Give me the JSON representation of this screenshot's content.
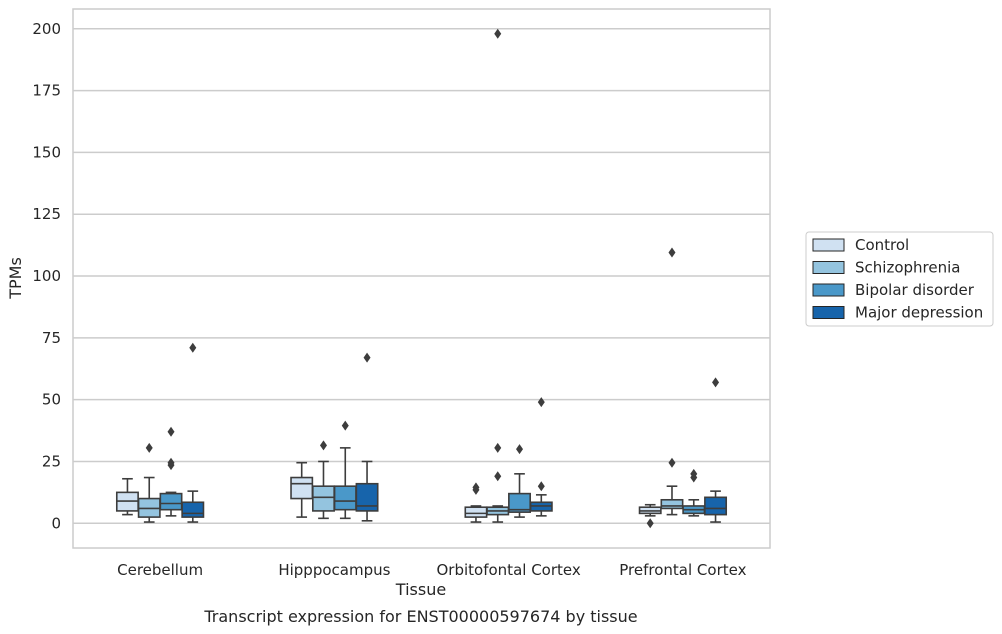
{
  "chart_data": {
    "type": "box",
    "caption": "Transcript expression for ENST00000597674 by tissue",
    "xlabel": "Tissue",
    "ylabel": "TPMs",
    "ylim": [
      -10,
      208
    ],
    "yticks": [
      0,
      25,
      50,
      75,
      100,
      125,
      150,
      175,
      200
    ],
    "grid": true,
    "legend_position": "right",
    "categories": [
      "Cerebellum",
      "Hipppocampus",
      "Orbitofontal Cortex",
      "Prefrontal Cortex"
    ],
    "series": [
      {
        "name": "Control",
        "color": "#d0e1f2",
        "boxes": [
          {
            "whislo": 3.5,
            "q1": 5,
            "med": 9,
            "q3": 12.5,
            "whishi": 18,
            "fliers": []
          },
          {
            "whislo": 2.5,
            "q1": 10,
            "med": 16,
            "q3": 18.5,
            "whishi": 24.5,
            "fliers": []
          },
          {
            "whislo": 0.5,
            "q1": 2.5,
            "med": 4,
            "q3": 6.5,
            "whishi": 7,
            "fliers": [
              13.5,
              14.5
            ]
          },
          {
            "whislo": 3,
            "q1": 4,
            "med": 5,
            "q3": 6.5,
            "whishi": 7.5,
            "fliers": [
              0
            ]
          }
        ]
      },
      {
        "name": "Schizophrenia",
        "color": "#94c4df",
        "boxes": [
          {
            "whislo": 0.5,
            "q1": 2.5,
            "med": 6,
            "q3": 10,
            "whishi": 18.5,
            "fliers": [
              30.5
            ]
          },
          {
            "whislo": 2,
            "q1": 5,
            "med": 10.5,
            "q3": 15,
            "whishi": 25,
            "fliers": [
              31.5
            ]
          },
          {
            "whislo": 0.5,
            "q1": 3.5,
            "med": 5,
            "q3": 6.5,
            "whishi": 7,
            "fliers": [
              19,
              30.5,
              198
            ]
          },
          {
            "whislo": 3.5,
            "q1": 6,
            "med": 7,
            "q3": 9.5,
            "whishi": 15,
            "fliers": [
              24.5,
              109.5
            ]
          }
        ]
      },
      {
        "name": "Bipolar disorder",
        "color": "#4a98c9",
        "boxes": [
          {
            "whislo": 3,
            "q1": 5.5,
            "med": 8,
            "q3": 12,
            "whishi": 12.5,
            "fliers": [
              23.5,
              24.5,
              37
            ]
          },
          {
            "whislo": 2,
            "q1": 5.5,
            "med": 9,
            "q3": 15,
            "whishi": 30.5,
            "fliers": [
              39.5
            ]
          },
          {
            "whislo": 2.5,
            "q1": 4.5,
            "med": 5.5,
            "q3": 12,
            "whishi": 20,
            "fliers": [
              30
            ]
          },
          {
            "whislo": 3,
            "q1": 4,
            "med": 5.5,
            "q3": 7,
            "whishi": 9.5,
            "fliers": [
              18.5,
              20
            ]
          }
        ]
      },
      {
        "name": "Major depression",
        "color": "#1764ab",
        "boxes": [
          {
            "whislo": 0.5,
            "q1": 2.5,
            "med": 4,
            "q3": 8.5,
            "whishi": 13,
            "fliers": [
              71
            ]
          },
          {
            "whislo": 1,
            "q1": 5,
            "med": 7,
            "q3": 16,
            "whishi": 25,
            "fliers": [
              67
            ]
          },
          {
            "whislo": 3,
            "q1": 5,
            "med": 7,
            "q3": 8.5,
            "whishi": 11.5,
            "fliers": [
              15,
              49
            ]
          },
          {
            "whislo": 0.5,
            "q1": 3.5,
            "med": 6,
            "q3": 10.5,
            "whishi": 13,
            "fliers": [
              57
            ]
          }
        ]
      }
    ]
  }
}
